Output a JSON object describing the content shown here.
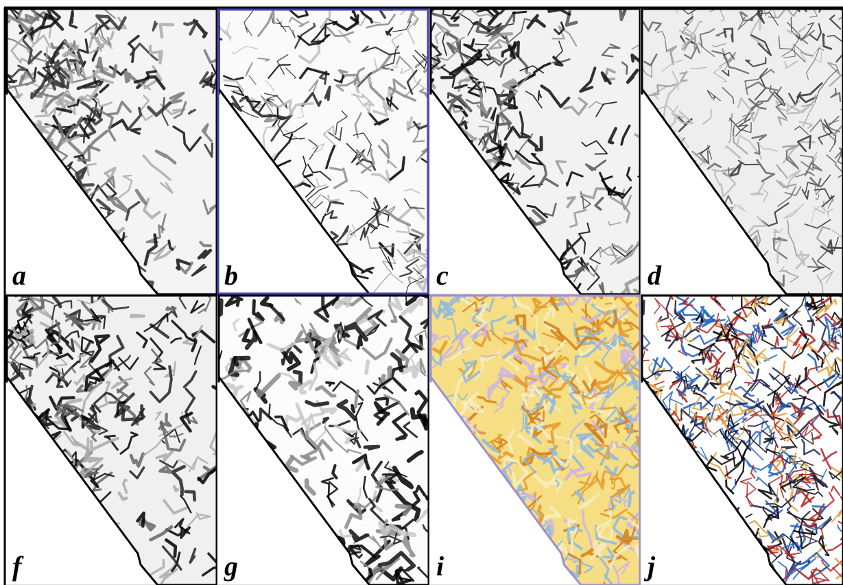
{
  "panels": [
    {
      "label": "a"
    },
    {
      "label": "b"
    },
    {
      "label": "c"
    },
    {
      "label": "d"
    },
    {
      "label": "f"
    },
    {
      "label": "g"
    },
    {
      "label": "i"
    },
    {
      "label": "j"
    }
  ]
}
